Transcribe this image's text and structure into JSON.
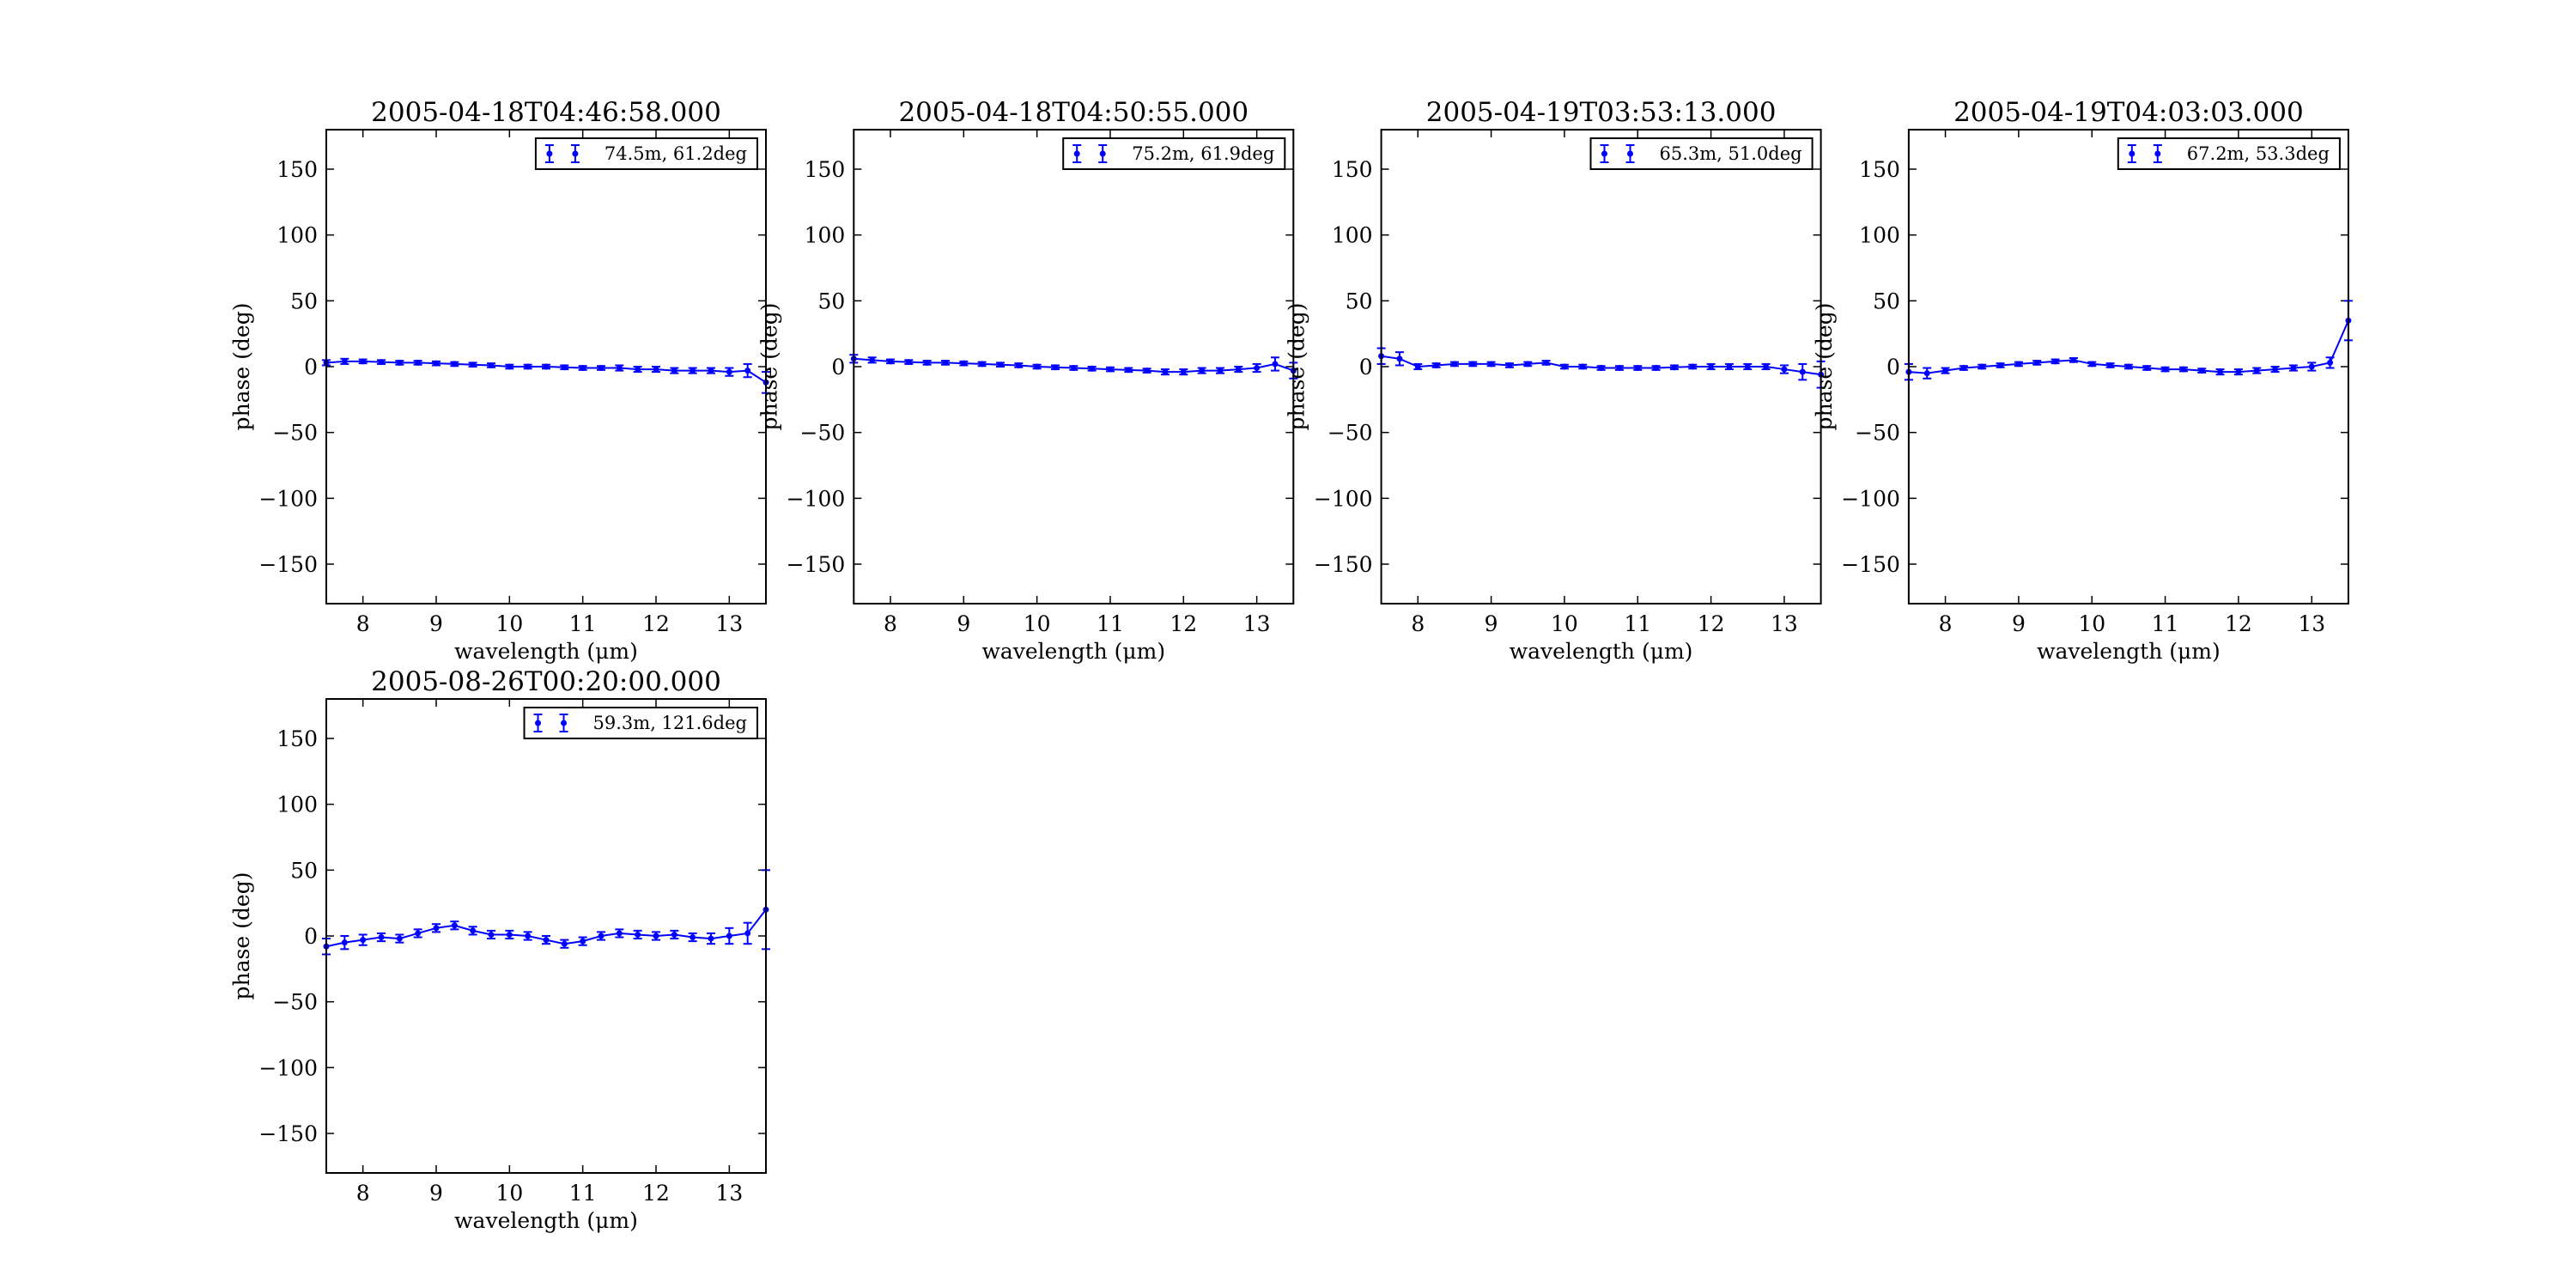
{
  "chart_data": [
    {
      "type": "errorbar",
      "title": "2005-04-18T04:46:58.000",
      "xlabel": "wavelength (μm)",
      "ylabel": "phase (deg)",
      "x": [
        7.5,
        7.75,
        8,
        8.25,
        8.5,
        8.75,
        9,
        9.25,
        9.5,
        9.75,
        10,
        10.25,
        10.5,
        10.75,
        11,
        11.25,
        11.5,
        11.75,
        12,
        12.25,
        12.5,
        12.75,
        13,
        13.25,
        13.5
      ],
      "series": [
        {
          "name": "74.5m, 61.2deg",
          "color": "#0000ff",
          "values": [
            3,
            4,
            4,
            3.5,
            3,
            3,
            2.5,
            2,
            1.5,
            1,
            0,
            0,
            0,
            -0.5,
            -1,
            -1,
            -1,
            -2,
            -2,
            -3,
            -3,
            -3,
            -4,
            -3,
            -12
          ],
          "errors": [
            2,
            2,
            1.5,
            1.5,
            1.5,
            1.5,
            1.5,
            1.5,
            1.5,
            1.5,
            1.5,
            1.5,
            1.5,
            1.5,
            1.5,
            1.5,
            2,
            2,
            2,
            2,
            2,
            2,
            3,
            5,
            8
          ]
        }
      ],
      "xlim": [
        7.5,
        13.5
      ],
      "ylim": [
        -180,
        180
      ],
      "xticks": [
        8,
        9,
        10,
        11,
        12,
        13
      ],
      "yticks": [
        {
          "value": -150,
          "label": "−150"
        },
        {
          "value": -100,
          "label": "−100"
        },
        {
          "value": -50,
          "label": "−50"
        },
        0,
        50,
        100,
        150
      ],
      "legend": "upper right"
    },
    {
      "type": "errorbar",
      "title": "2005-04-18T04:50:55.000",
      "xlabel": "wavelength (μm)",
      "ylabel": "phase (deg)",
      "x": [
        7.5,
        7.75,
        8,
        8.25,
        8.5,
        8.75,
        9,
        9.25,
        9.5,
        9.75,
        10,
        10.25,
        10.5,
        10.75,
        11,
        11.25,
        11.5,
        11.75,
        12,
        12.25,
        12.5,
        12.75,
        13,
        13.25,
        13.5
      ],
      "series": [
        {
          "name": "75.2m, 61.9deg",
          "color": "#0000ff",
          "values": [
            6,
            5,
            4,
            3.5,
            3,
            3,
            2.5,
            2,
            1.5,
            1,
            0,
            -0.5,
            -1,
            -1.5,
            -2,
            -2.5,
            -3,
            -4,
            -4,
            -3,
            -3,
            -2,
            -1,
            2,
            -3
          ],
          "errors": [
            3,
            2,
            1.5,
            1.5,
            1.5,
            1.5,
            1.5,
            1.5,
            1.5,
            1.5,
            1.5,
            1.5,
            1.5,
            1.5,
            1.5,
            1.5,
            1.5,
            2,
            2,
            2,
            2,
            2,
            3,
            5,
            6
          ]
        }
      ],
      "xlim": [
        7.5,
        13.5
      ],
      "ylim": [
        -180,
        180
      ],
      "xticks": [
        8,
        9,
        10,
        11,
        12,
        13
      ],
      "yticks": [
        {
          "value": -150,
          "label": "−150"
        },
        {
          "value": -100,
          "label": "−100"
        },
        {
          "value": -50,
          "label": "−50"
        },
        0,
        50,
        100,
        150
      ],
      "legend": "upper right"
    },
    {
      "type": "errorbar",
      "title": "2005-04-19T03:53:13.000",
      "xlabel": "wavelength (μm)",
      "ylabel": "phase (deg)",
      "x": [
        7.5,
        7.75,
        8,
        8.25,
        8.5,
        8.75,
        9,
        9.25,
        9.5,
        9.75,
        10,
        10.25,
        10.5,
        10.75,
        11,
        11.25,
        11.5,
        11.75,
        12,
        12.25,
        12.5,
        12.75,
        13,
        13.25,
        13.5
      ],
      "series": [
        {
          "name": "65.3m, 51.0deg",
          "color": "#0000ff",
          "values": [
            8,
            6,
            0,
            1,
            2,
            2,
            2,
            1,
            2,
            3,
            0,
            0,
            -1,
            -1,
            -1,
            -1,
            -0.5,
            0,
            0,
            0,
            0,
            0,
            -2,
            -4,
            -6
          ],
          "errors": [
            6,
            5,
            2,
            1.5,
            1.5,
            1.5,
            1.5,
            1.5,
            1.5,
            1.5,
            1.5,
            1.5,
            1.5,
            1.5,
            1.5,
            1.5,
            1.5,
            1.5,
            2,
            2,
            2,
            2,
            3,
            6,
            10
          ]
        }
      ],
      "xlim": [
        7.5,
        13.5
      ],
      "ylim": [
        -180,
        180
      ],
      "xticks": [
        8,
        9,
        10,
        11,
        12,
        13
      ],
      "yticks": [
        {
          "value": -150,
          "label": "−150"
        },
        {
          "value": -100,
          "label": "−100"
        },
        {
          "value": -50,
          "label": "−50"
        },
        0,
        50,
        100,
        150
      ],
      "legend": "upper right"
    },
    {
      "type": "errorbar",
      "title": "2005-04-19T04:03:03.000",
      "xlabel": "wavelength (μm)",
      "ylabel": "phase (deg)",
      "x": [
        7.5,
        7.75,
        8,
        8.25,
        8.5,
        8.75,
        9,
        9.25,
        9.5,
        9.75,
        10,
        10.25,
        10.5,
        10.75,
        11,
        11.25,
        11.5,
        11.75,
        12,
        12.25,
        12.5,
        12.75,
        13,
        13.25,
        13.5
      ],
      "series": [
        {
          "name": "67.2m, 53.3deg",
          "color": "#0000ff",
          "values": [
            -4,
            -5,
            -3,
            -1,
            0,
            1,
            2,
            3,
            4,
            5,
            2,
            1,
            0,
            -1,
            -2,
            -2,
            -3,
            -4,
            -4,
            -3,
            -2,
            -1,
            0,
            3,
            35
          ],
          "errors": [
            6,
            4,
            2,
            1.5,
            1.5,
            1.5,
            1.5,
            1.5,
            1.5,
            1.5,
            1.5,
            1.5,
            1.5,
            1.5,
            1.5,
            1.5,
            1.5,
            2,
            2,
            2,
            2,
            2,
            3,
            4,
            15
          ]
        }
      ],
      "xlim": [
        7.5,
        13.5
      ],
      "ylim": [
        -180,
        180
      ],
      "xticks": [
        8,
        9,
        10,
        11,
        12,
        13
      ],
      "yticks": [
        {
          "value": -150,
          "label": "−150"
        },
        {
          "value": -100,
          "label": "−100"
        },
        {
          "value": -50,
          "label": "−50"
        },
        0,
        50,
        100,
        150
      ],
      "legend": "upper right"
    },
    {
      "type": "errorbar",
      "title": "2005-08-26T00:20:00.000",
      "xlabel": "wavelength (μm)",
      "ylabel": "phase (deg)",
      "x": [
        7.5,
        7.75,
        8,
        8.25,
        8.5,
        8.75,
        9,
        9.25,
        9.5,
        9.75,
        10,
        10.25,
        10.5,
        10.75,
        11,
        11.25,
        11.5,
        11.75,
        12,
        12.25,
        12.5,
        12.75,
        13,
        13.25,
        13.5
      ],
      "series": [
        {
          "name": "59.3m, 121.6deg",
          "color": "#0000ff",
          "values": [
            -8,
            -5,
            -3,
            -1,
            -2,
            2,
            6,
            8,
            4,
            1,
            1,
            0,
            -3,
            -6,
            -4,
            0,
            2,
            1,
            0,
            1,
            -1,
            -2,
            0,
            2,
            20
          ],
          "errors": [
            6,
            5,
            4,
            3,
            3,
            3,
            3,
            3,
            3,
            3,
            3,
            3,
            3,
            3,
            3,
            3,
            3,
            3,
            3,
            3,
            3,
            4,
            6,
            8,
            30
          ]
        }
      ],
      "xlim": [
        7.5,
        13.5
      ],
      "ylim": [
        -180,
        180
      ],
      "xticks": [
        8,
        9,
        10,
        11,
        12,
        13
      ],
      "yticks": [
        {
          "value": -150,
          "label": "−150"
        },
        {
          "value": -100,
          "label": "−100"
        },
        {
          "value": -50,
          "label": "−50"
        },
        0,
        50,
        100,
        150
      ],
      "legend": "upper right"
    }
  ]
}
